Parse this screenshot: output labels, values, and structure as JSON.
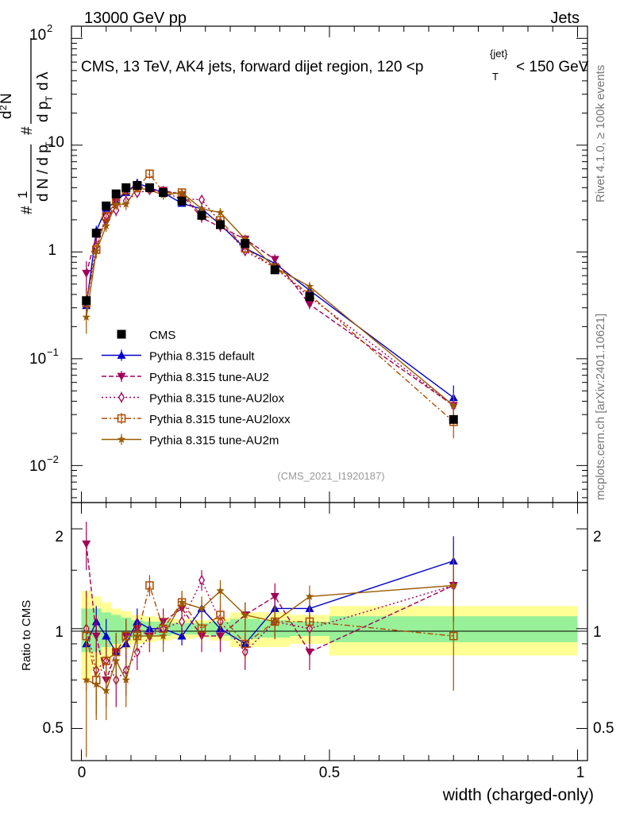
{
  "header": {
    "left": "13000 GeV pp",
    "right": "Jets",
    "side_rivet": "Rivet 4.1.0, ≥ 100k events",
    "side_mcplots": "mcplots.cern.ch [arXiv:2401.10621]"
  },
  "chart_data": {
    "type": "line",
    "title": "CMS, 13 TeV, AK4 jets, forward dijet region, 120 <p",
    "title_sup": "{jet}",
    "title_sub": "T",
    "title_end": "< 150 GeV",
    "analysis_tag": "(CMS_2021_I1920187)",
    "xlabel": "width (charged-only)",
    "ylabel_main": "1/(dN/dp_T) d²N/(dp_T dλ)",
    "ylabel_ratio": "Ratio to CMS",
    "xlim": [
      -0.02,
      1.02
    ],
    "ylim_main": [
      0.0045,
      130
    ],
    "ylim_ratio": [
      0.4,
      2.4
    ],
    "x_ticks": [
      "0",
      "0.5",
      "1"
    ],
    "y_ticks_main": [
      "10^-2",
      "10^-1",
      "1",
      "10",
      "10^2"
    ],
    "y_ticks_ratio": [
      "0.5",
      "1",
      "2"
    ],
    "bin_edges": [
      0.0,
      0.02,
      0.04,
      0.06,
      0.08,
      0.1,
      0.125,
      0.15,
      0.18,
      0.225,
      0.26,
      0.3,
      0.36,
      0.42,
      0.5,
      1.0
    ],
    "ref_band_inner": [
      0.15,
      0.15,
      0.12,
      0.1,
      0.08,
      0.06,
      0.05,
      0.05,
      0.04,
      0.04,
      0.05,
      0.07,
      0.06,
      0.05,
      0.09
    ],
    "ref_band_outer": [
      0.3,
      0.25,
      0.2,
      0.15,
      0.13,
      0.1,
      0.09,
      0.08,
      0.07,
      0.06,
      0.08,
      0.12,
      0.12,
      0.1,
      0.17
    ],
    "reference": {
      "name": "CMS",
      "x": [
        0.01,
        0.03,
        0.05,
        0.07,
        0.09,
        0.1125,
        0.1375,
        0.165,
        0.2025,
        0.2425,
        0.28,
        0.33,
        0.39,
        0.46,
        0.75
      ],
      "y": [
        0.35,
        1.5,
        2.7,
        3.5,
        4.0,
        4.2,
        4.0,
        3.6,
        3.0,
        2.2,
        1.8,
        1.2,
        0.68,
        0.38,
        0.027
      ]
    },
    "series": [
      {
        "name": "Pythia 8.315 default",
        "color": "#0000cc",
        "dash": "",
        "marker": "triangle-up",
        "ratio": [
          0.9,
          1.05,
          0.95,
          0.85,
          0.9,
          1.05,
          1.0,
          1.0,
          0.95,
          1.15,
          1.0,
          0.9,
          1.15,
          1.15,
          1.6
        ],
        "ratio_err": [
          0.08,
          0.12,
          0.12,
          0.1,
          0.1,
          0.1,
          0.08,
          0.08,
          0.06,
          0.07,
          0.08,
          0.07,
          0.1,
          0.12,
          0.3
        ]
      },
      {
        "name": "Pythia 8.315 tune-AU2",
        "color": "#a0005a",
        "dash": "6,3",
        "marker": "triangle-down",
        "ratio": [
          1.8,
          0.95,
          0.7,
          0.85,
          0.95,
          1.0,
          0.95,
          1.05,
          1.15,
          0.95,
          0.95,
          1.1,
          1.25,
          0.85,
          1.35
        ],
        "ratio_err": [
          0.3,
          0.15,
          0.12,
          0.12,
          0.12,
          0.1,
          0.1,
          0.1,
          0.1,
          0.1,
          0.1,
          0.1,
          0.12,
          0.1,
          0.3
        ]
      },
      {
        "name": "Pythia 8.315 tune-AU2lox",
        "color": "#a0005a",
        "dash": "2,3",
        "marker": "diamond",
        "ratio": [
          1.0,
          0.75,
          0.8,
          0.7,
          0.75,
          0.85,
          0.95,
          1.0,
          1.05,
          1.4,
          1.05,
          0.85,
          1.05,
          1.0,
          1.35
        ],
        "ratio_err": [
          0.3,
          0.15,
          0.12,
          0.12,
          0.12,
          0.1,
          0.1,
          0.1,
          0.1,
          0.1,
          0.1,
          0.1,
          0.12,
          0.1,
          0.3
        ]
      },
      {
        "name": "Pythia 8.315 tune-AU2loxx",
        "color": "#b04a00",
        "dash": "7,3,2,3",
        "marker": "square-open",
        "ratio": [
          0.95,
          0.7,
          0.8,
          0.85,
          0.95,
          0.95,
          1.35,
          1.0,
          1.2,
          1.0,
          1.1,
          0.9,
          1.05,
          1.05,
          0.95
        ],
        "ratio_err": [
          0.3,
          0.15,
          0.12,
          0.12,
          0.12,
          0.1,
          0.1,
          0.1,
          0.1,
          0.1,
          0.1,
          0.1,
          0.12,
          0.1,
          0.3
        ]
      },
      {
        "name": "Pythia 8.315 tune-AU2m",
        "color": "#9a5a00",
        "dash": "",
        "marker": "star",
        "ratio": [
          0.7,
          0.68,
          0.65,
          0.8,
          0.7,
          0.95,
          0.95,
          0.95,
          1.2,
          1.15,
          1.3,
          1.1,
          1.05,
          1.25,
          1.35
        ],
        "ratio_err": [
          0.3,
          0.15,
          0.12,
          0.12,
          0.12,
          0.1,
          0.1,
          0.1,
          0.1,
          0.1,
          0.1,
          0.1,
          0.12,
          0.1,
          0.3
        ]
      }
    ]
  },
  "colors": {
    "band_inner": "#98f098",
    "band_outer": "#ffff96",
    "axis": "#000000",
    "tag": "#999999",
    "side_text": "#777777"
  }
}
